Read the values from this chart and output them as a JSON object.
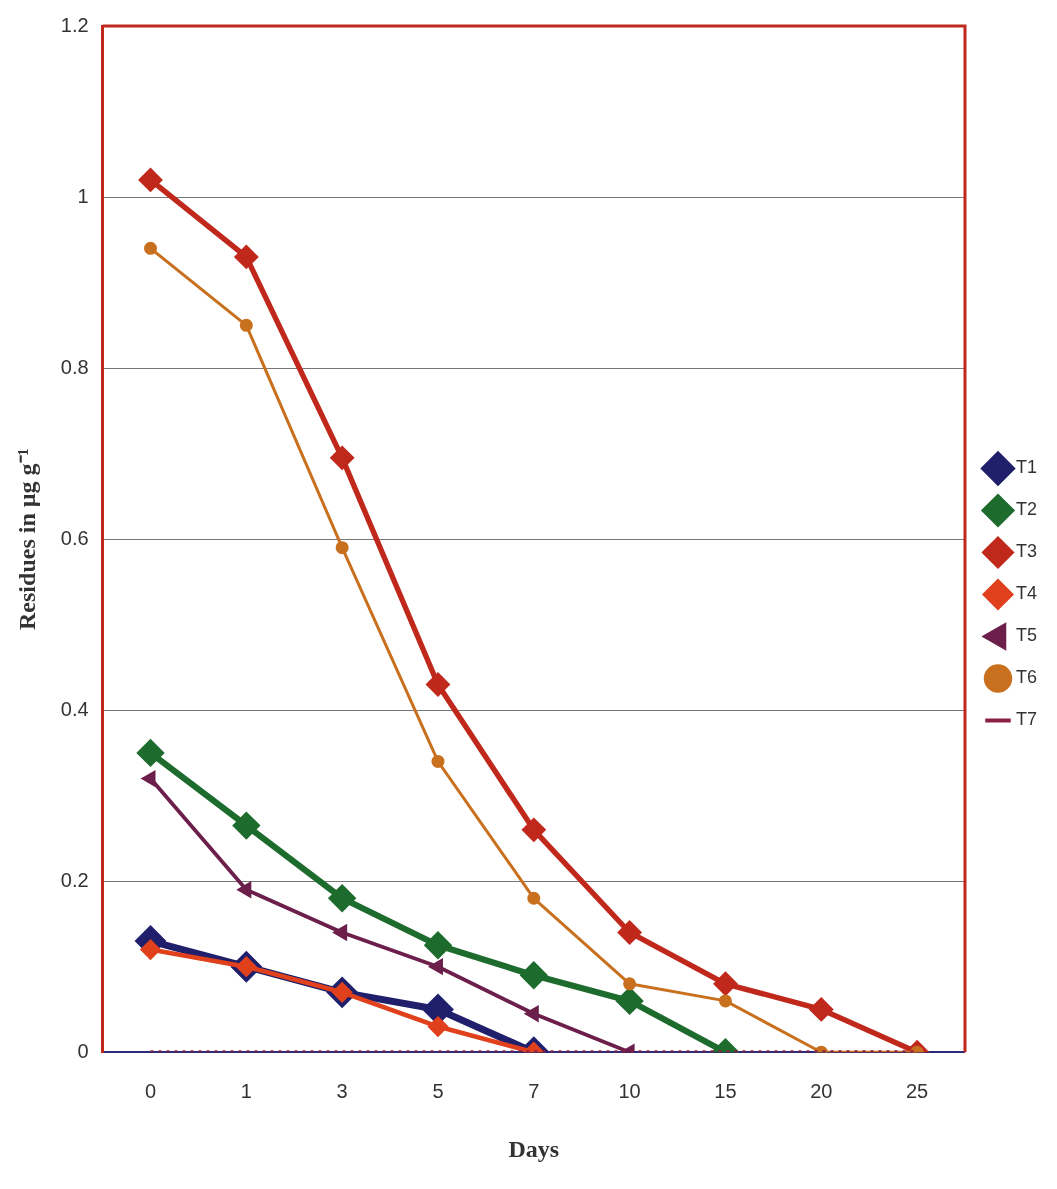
{
  "chart_data": {
    "type": "line",
    "xlabel": "Days",
    "ylabel": "Residues in µg g⁻¹",
    "categories": [
      "0",
      "1",
      "3",
      "5",
      "7",
      "10",
      "15",
      "20",
      "25"
    ],
    "ylim": [
      0,
      1.2
    ],
    "yticks": [
      0,
      0.2,
      0.4,
      0.6,
      0.8,
      1,
      1.2
    ],
    "grid": "y",
    "legend": "right",
    "series": [
      {
        "name": "T1",
        "color": "#1f1f6b",
        "marker": "diamond",
        "values": [
          0.13,
          0.1,
          0.07,
          0.05,
          0,
          null,
          null,
          null,
          null
        ]
      },
      {
        "name": "T2",
        "color": "#1e6b2e",
        "marker": "diamond",
        "values": [
          0.35,
          0.265,
          0.18,
          0.125,
          0.09,
          0.06,
          0,
          null,
          null
        ]
      },
      {
        "name": "T3",
        "color": "#c0281c",
        "marker": "diamond",
        "values": [
          1.02,
          0.93,
          0.695,
          0.43,
          0.26,
          0.14,
          0.08,
          0.05,
          0
        ]
      },
      {
        "name": "T4",
        "color": "#e0401c",
        "marker": "diamond",
        "values": [
          0.12,
          0.1,
          0.07,
          0.03,
          0,
          null,
          null,
          null,
          null
        ]
      },
      {
        "name": "T5",
        "color": "#6b1f4a",
        "marker": "triangle",
        "values": [
          0.32,
          0.19,
          0.14,
          0.1,
          0.045,
          0,
          null,
          null,
          null
        ]
      },
      {
        "name": "T6",
        "color": "#c8701e",
        "marker": "circle",
        "values": [
          0.94,
          0.85,
          0.59,
          0.34,
          0.18,
          0.08,
          0.06,
          0,
          0
        ]
      },
      {
        "name": "T7",
        "color": "#8b2040",
        "marker": "none",
        "line_style": "dotted",
        "values": [
          0,
          0,
          0,
          0,
          0,
          0,
          0,
          0,
          0
        ]
      }
    ]
  }
}
